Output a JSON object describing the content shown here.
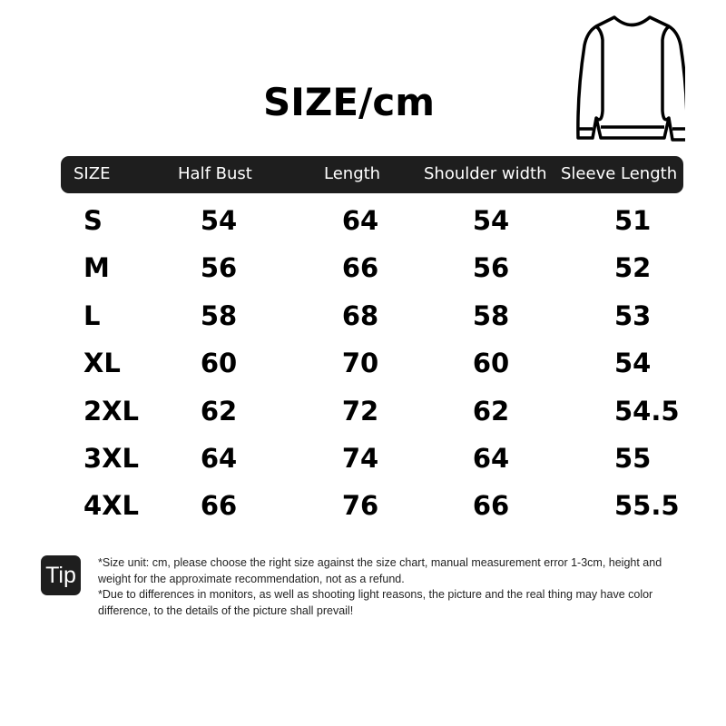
{
  "title": "SIZE/cm",
  "icon": "sweatshirt-icon",
  "table": {
    "headers": [
      "SIZE",
      "Half Bust",
      "Length",
      "Shoulder width",
      "Sleeve Length"
    ],
    "rows": [
      [
        "S",
        "54",
        "64",
        "54",
        "51"
      ],
      [
        "M",
        "56",
        "66",
        "56",
        "52"
      ],
      [
        "L",
        "58",
        "68",
        "58",
        "53"
      ],
      [
        "XL",
        "60",
        "70",
        "60",
        "54"
      ],
      [
        "2XL",
        "62",
        "72",
        "62",
        "54.5"
      ],
      [
        "3XL",
        "64",
        "74",
        "64",
        "55"
      ],
      [
        "4XL",
        "66",
        "76",
        "66",
        "55.5"
      ]
    ]
  },
  "tip": {
    "label": "Tip",
    "lines": [
      "*Size unit: cm, please choose the right size against the size chart, manual measurement error 1-3cm, height and weight for the approximate recommendation, not as a refund.",
      "*Due to differences in monitors, as well as shooting light reasons, the picture and the real thing may have color difference, to the details of the picture shall prevail!"
    ]
  }
}
